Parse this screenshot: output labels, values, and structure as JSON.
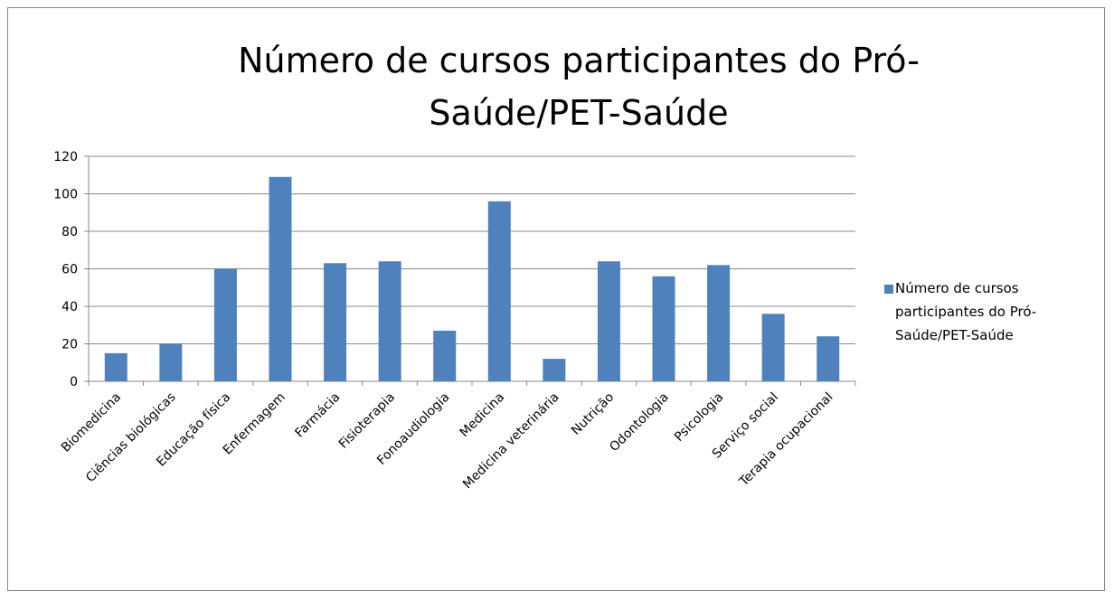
{
  "chart_data": {
    "type": "bar",
    "title": "Número de cursos participantes do Pró-Saúde/PET-Saúde",
    "categories": [
      "Biomedicina",
      "Ciências biológicas",
      "Educação física",
      "Enfermagem",
      "Farmácia",
      "Fisioterapia",
      "Fonoaudiologia",
      "Medicina",
      "Medicina veterinária",
      "Nutrição",
      "Odontologia",
      "Psicologia",
      "Serviço social",
      "Terapia ocupacional"
    ],
    "series": [
      {
        "name": "Número de cursos participantes do Pró-Saúde/PET-Saúde",
        "color": "#4f81bd",
        "values": [
          15,
          20,
          60,
          109,
          63,
          64,
          27,
          96,
          12,
          64,
          56,
          62,
          36,
          24
        ]
      }
    ],
    "ylim": [
      0,
      120
    ],
    "yticks": [
      0,
      20,
      40,
      60,
      80,
      100,
      120
    ],
    "grid": true,
    "legend": "right"
  }
}
